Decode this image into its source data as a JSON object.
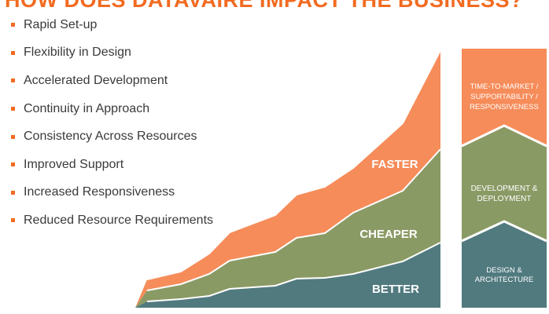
{
  "title": "HOW DOES DATAVAIRE IMPACT THE BUSINESS?",
  "benefits": [
    "Rapid Set-up",
    "Flexibility in Design",
    "Accelerated Development",
    "Continuity in Approach",
    "Consistency Across Resources",
    "Improved Support",
    "Increased Responsiveness",
    "Reduced Resource Requirements"
  ],
  "chart_labels": {
    "faster": "FASTER",
    "cheaper": "CHEAPER",
    "better": "BETTER"
  },
  "stack": {
    "top_lines": [
      "TIME-TO-MARKET /",
      "SUPPORTABILITY /",
      "RESPONSIVENESS"
    ],
    "middle_lines": [
      "DEVELOPMENT &",
      "DEPLOYMENT"
    ],
    "bottom_lines": [
      "DESIGN &",
      "ARCHITECTURE"
    ]
  },
  "colors": {
    "orange": "#F68C5A",
    "green": "#8A9A65",
    "teal": "#517A7F",
    "accent": "#F26B21"
  }
}
